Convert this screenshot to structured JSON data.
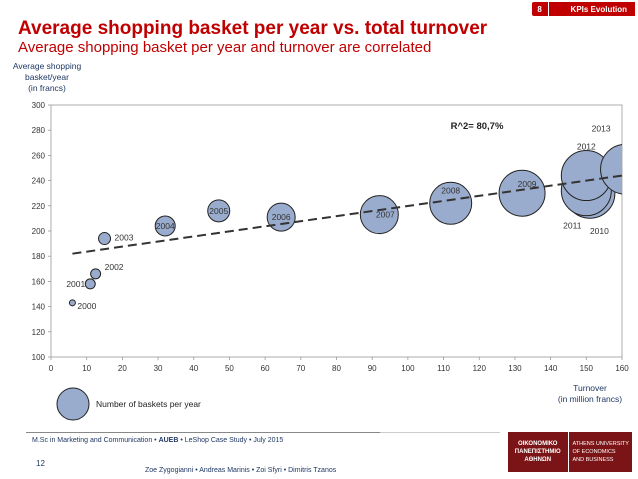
{
  "header": {
    "section_number": "8",
    "section_label": "KPIs Evolution",
    "title": "Average shopping basket per year vs. total turnover",
    "subtitle": "Average shopping basket per year and turnover are correlated"
  },
  "chart_data": {
    "type": "scatter",
    "title": "Average shopping basket per year vs. total turnover",
    "ylabel_lines": [
      "Average shopping",
      "basket/year",
      "(in francs)"
    ],
    "xlabel_lines": [
      "Turnover",
      "(in million francs)"
    ],
    "xlim": [
      0,
      160
    ],
    "ylim": [
      100,
      300
    ],
    "xticks": [
      "0",
      "10",
      "20",
      "30",
      "40",
      "50",
      "60",
      "70",
      "80",
      "90",
      "100",
      "110",
      "120",
      "130",
      "140",
      "150",
      "160"
    ],
    "yticks": [
      "100",
      "120",
      "140",
      "160",
      "180",
      "200",
      "220",
      "240",
      "260",
      "280",
      "300"
    ],
    "bubble_size_legend": "Number of baskets per year",
    "annotation": "R^2= 80,7%",
    "trendline": {
      "x": [
        6,
        160
      ],
      "y": [
        182,
        244
      ]
    },
    "points": [
      {
        "year": "2000",
        "x": 6,
        "y": 143,
        "r": 3
      },
      {
        "year": "2001",
        "x": 11,
        "y": 158,
        "r": 5
      },
      {
        "year": "2002",
        "x": 12.5,
        "y": 166,
        "r": 5
      },
      {
        "year": "2003",
        "x": 15,
        "y": 194,
        "r": 6
      },
      {
        "year": "2004",
        "x": 32,
        "y": 204,
        "r": 10
      },
      {
        "year": "2005",
        "x": 47,
        "y": 216,
        "r": 11
      },
      {
        "year": "2006",
        "x": 64.5,
        "y": 211,
        "r": 14
      },
      {
        "year": "2007",
        "x": 92,
        "y": 213,
        "r": 19
      },
      {
        "year": "2008",
        "x": 112,
        "y": 222,
        "r": 21
      },
      {
        "year": "2009",
        "x": 132,
        "y": 230,
        "r": 23
      },
      {
        "year": "2010",
        "x": 151,
        "y": 230,
        "r": 25
      },
      {
        "year": "2011",
        "x": 150,
        "y": 232,
        "r": 25
      },
      {
        "year": "2012",
        "x": 150,
        "y": 244,
        "r": 25
      },
      {
        "year": "2013",
        "x": 161,
        "y": 249,
        "r": 25
      }
    ]
  },
  "footer": {
    "program": "M.Sc in Marketing and Communication",
    "school": "AUEB",
    "case": "LeShop Case Study",
    "date": "July 2015",
    "page": "12",
    "authors": "Zoe Zygogianni • Andreas Marinis • Zoi Sfyri • Dimitris Tzanos",
    "logo_gr": [
      "ΟΙΚΟΝΟΜΙΚΟ",
      "ΠΑΝΕΠΙΣΤΗΜΙΟ",
      "ΑΘΗΝΩΝ"
    ],
    "logo_en": [
      "ATHENS UNIVERSITY",
      "OF ECONOMICS",
      "AND BUSINESS"
    ]
  }
}
